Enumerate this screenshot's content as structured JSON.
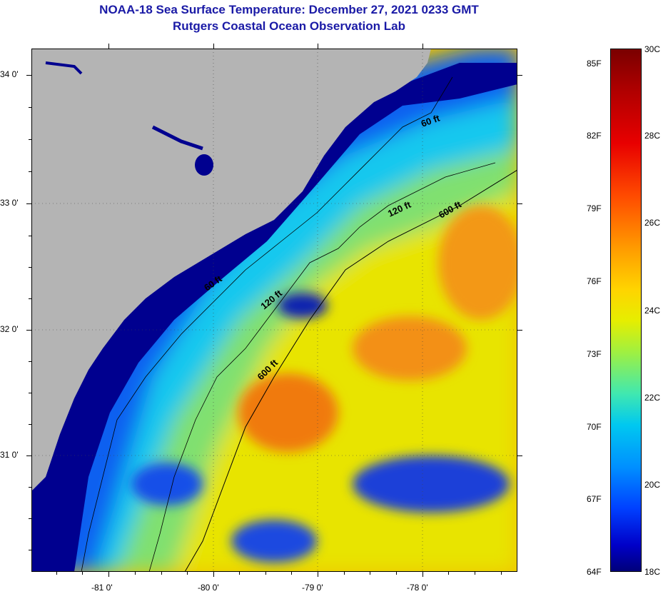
{
  "title": {
    "line1": "NOAA-18 Sea Surface Temperature:  December 27, 2021 0233 GMT",
    "line2": "Rutgers Coastal Ocean Observation Lab"
  },
  "map": {
    "lat_labels": [
      "34 0'",
      "33 0'",
      "32 0'",
      "31 0'"
    ],
    "lon_labels": [
      "-81 0'",
      "-80 0'",
      "-79 0'",
      "-78 0'"
    ],
    "isobath_labels": [
      "60 ft",
      "120 ft",
      "600 ft",
      "60 ft",
      "120 ft",
      "600 ft"
    ],
    "colors": {
      "land": "#b4b4b4",
      "cold": "#00008f",
      "warm": "#f4a000"
    }
  },
  "colorbar": {
    "fahrenheit_labels": [
      "85F",
      "82F",
      "79F",
      "76F",
      "73F",
      "70F",
      "67F",
      "64F"
    ],
    "celsius_labels": [
      "30C",
      "28C",
      "26C",
      "24C",
      "22C",
      "20C",
      "18C"
    ]
  }
}
